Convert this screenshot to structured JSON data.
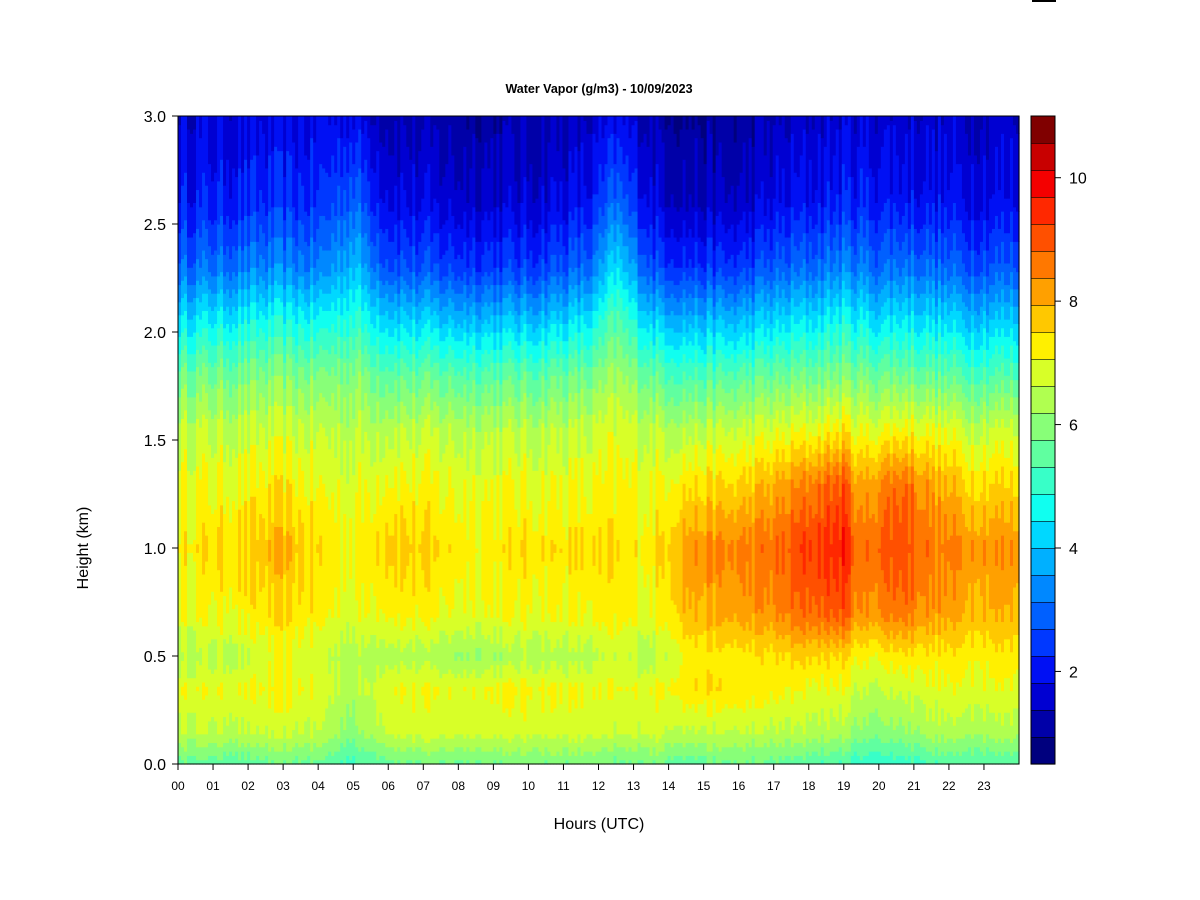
{
  "chart_data": {
    "type": "heatmap",
    "title": "Water Vapor (g/m3) - 10/09/2023",
    "xlabel": "Hours (UTC)",
    "ylabel": "Height (km)",
    "xlim": [
      0,
      24
    ],
    "ylim": [
      0.0,
      3.0
    ],
    "x_ticks": [
      "00",
      "01",
      "02",
      "03",
      "04",
      "05",
      "06",
      "07",
      "08",
      "09",
      "10",
      "11",
      "12",
      "13",
      "14",
      "15",
      "16",
      "17",
      "18",
      "19",
      "20",
      "21",
      "22",
      "23"
    ],
    "y_ticks": [
      "0.0",
      "0.5",
      "1.0",
      "1.5",
      "2.0",
      "2.5",
      "3.0"
    ],
    "colorbar": {
      "range": [
        0.5,
        11.0
      ],
      "ticks": [
        "2",
        "4",
        "6",
        "8",
        "10"
      ],
      "colors": [
        "#00007e",
        "#0000a8",
        "#0000d2",
        "#0010f4",
        "#0038ff",
        "#0060ff",
        "#0088ff",
        "#00b0ff",
        "#00d8ff",
        "#10fff0",
        "#38ffc8",
        "#60ffa0",
        "#88ff78",
        "#b0ff50",
        "#d8ff28",
        "#fff000",
        "#ffc800",
        "#ffa000",
        "#ff7800",
        "#ff5000",
        "#ff2800",
        "#f40000",
        "#c80000",
        "#800000"
      ]
    },
    "grid": false,
    "legend": "colorbar-right",
    "profile_hours": [
      0,
      2,
      3,
      4,
      5,
      6,
      8,
      10,
      11.8,
      12.5,
      13.5,
      14.5,
      16,
      17,
      18,
      19,
      19.5,
      20,
      20.7,
      21.5,
      22.5,
      24
    ],
    "profile_heights_km": [
      0.0,
      0.15,
      0.35,
      0.5,
      0.7,
      1.0,
      1.3,
      1.55,
      1.8,
      2.05,
      2.3,
      2.6,
      3.0
    ],
    "values_gm3": [
      [
        5.6,
        6.6,
        7.0,
        6.4,
        7.0,
        7.3,
        7.0,
        6.6,
        5.7,
        4.4,
        3.0,
        2.1,
        1.6
      ],
      [
        5.4,
        6.6,
        7.0,
        6.6,
        7.2,
        7.6,
        7.1,
        6.6,
        5.8,
        4.6,
        3.2,
        2.2,
        1.7
      ],
      [
        5.7,
        6.7,
        7.2,
        7.0,
        7.5,
        7.9,
        7.3,
        6.7,
        5.9,
        4.7,
        3.3,
        2.3,
        1.7
      ],
      [
        5.6,
        6.6,
        6.9,
        6.7,
        7.2,
        7.5,
        7.0,
        6.6,
        5.8,
        4.6,
        3.2,
        2.3,
        1.8
      ],
      [
        5.2,
        6.0,
        6.4,
        6.4,
        6.9,
        7.1,
        6.9,
        6.5,
        6.0,
        5.0,
        4.0,
        3.0,
        1.9
      ],
      [
        5.7,
        6.8,
        7.1,
        6.5,
        7.3,
        7.8,
        7.2,
        6.6,
        5.6,
        4.3,
        2.8,
        1.9,
        1.3
      ],
      [
        5.7,
        6.8,
        7.0,
        6.2,
        7.0,
        7.3,
        7.0,
        6.5,
        5.5,
        4.0,
        2.5,
        1.6,
        1.1
      ],
      [
        5.8,
        6.8,
        7.2,
        6.4,
        7.1,
        7.4,
        7.0,
        6.5,
        5.5,
        4.0,
        2.5,
        1.6,
        1.2
      ],
      [
        5.8,
        6.8,
        7.0,
        6.4,
        7.1,
        7.4,
        7.0,
        6.6,
        5.7,
        4.4,
        3.0,
        2.0,
        1.4
      ],
      [
        5.6,
        6.6,
        7.0,
        6.7,
        7.2,
        7.4,
        7.1,
        6.8,
        6.2,
        5.4,
        4.3,
        3.0,
        1.8
      ],
      [
        5.8,
        6.8,
        7.0,
        6.4,
        7.0,
        7.3,
        7.0,
        6.6,
        5.6,
        4.2,
        2.7,
        1.8,
        1.3
      ],
      [
        5.5,
        6.6,
        7.4,
        7.2,
        7.9,
        8.2,
        7.4,
        6.5,
        5.3,
        3.9,
        2.4,
        1.4,
        1.0
      ],
      [
        5.7,
        6.6,
        7.4,
        7.3,
        8.1,
        8.5,
        7.5,
        6.6,
        5.4,
        3.9,
        2.4,
        1.4,
        1.0
      ],
      [
        5.6,
        6.5,
        7.2,
        7.4,
        8.3,
        8.7,
        7.9,
        6.8,
        5.6,
        4.2,
        2.8,
        1.8,
        1.3
      ],
      [
        5.4,
        6.5,
        7.0,
        7.6,
        8.8,
        9.3,
        8.5,
        7.0,
        5.7,
        4.4,
        3.0,
        2.0,
        1.5
      ],
      [
        5.3,
        6.4,
        7.0,
        7.5,
        9.0,
        9.6,
        9.0,
        7.3,
        5.9,
        4.7,
        3.3,
        2.2,
        1.6
      ],
      [
        5.0,
        6.0,
        6.6,
        7.1,
        8.2,
        8.6,
        7.9,
        6.9,
        5.8,
        4.5,
        3.2,
        2.2,
        1.6
      ],
      [
        5.0,
        6.0,
        6.6,
        7.2,
        8.4,
        8.9,
        8.4,
        7.0,
        5.7,
        4.3,
        3.0,
        2.1,
        1.6
      ],
      [
        5.1,
        6.1,
        6.8,
        7.4,
        8.7,
        9.2,
        8.8,
        7.2,
        5.8,
        4.5,
        3.2,
        2.1,
        1.6
      ],
      [
        5.3,
        6.4,
        6.9,
        7.3,
        8.2,
        8.6,
        8.1,
        7.0,
        5.6,
        4.3,
        3.0,
        2.0,
        1.5
      ],
      [
        5.4,
        6.4,
        7.0,
        7.3,
        8.0,
        8.4,
        7.6,
        6.7,
        5.4,
        4.1,
        2.8,
        1.9,
        1.5
      ],
      [
        5.4,
        6.4,
        7.0,
        7.3,
        7.9,
        8.3,
        7.5,
        6.7,
        5.4,
        4.1,
        2.8,
        1.9,
        1.5
      ]
    ]
  }
}
